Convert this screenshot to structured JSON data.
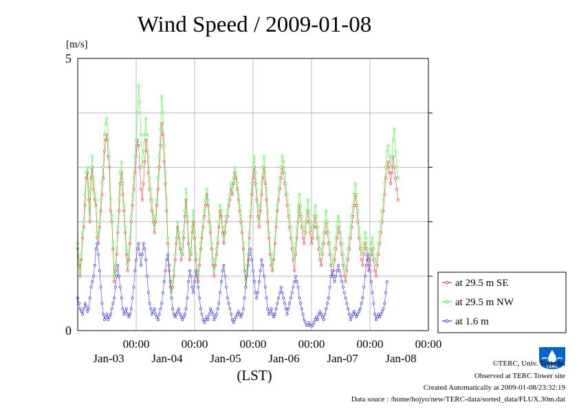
{
  "chart_data": {
    "type": "line",
    "title": "Wind Speed / 2009-01-08",
    "ylabel": "[m/s]",
    "xlabel": "(LST)",
    "ylim": [
      0,
      5
    ],
    "y_tick_labels": [
      "0",
      "5"
    ],
    "x_day_range": [
      2.0,
      8.0
    ],
    "x_ticks": [
      {
        "day": 3,
        "time_label": "00:00",
        "date_label": "Jan-03"
      },
      {
        "day": 4,
        "time_label": "00:00",
        "date_label": "Jan-04"
      },
      {
        "day": 5,
        "time_label": "00:00",
        "date_label": "Jan-05"
      },
      {
        "day": 6,
        "time_label": "00:00",
        "date_label": "Jan-06"
      },
      {
        "day": 7,
        "time_label": "00:00",
        "date_label": "Jan-07"
      },
      {
        "day": 8,
        "time_label": "00:00",
        "date_label": "Jan-08"
      }
    ],
    "x_points_per_day": 48,
    "grid": true,
    "legend_position": "right-bottom",
    "series": [
      {
        "name": "at 29.5 m SE",
        "color": "#ff0000",
        "values": [
          1.5,
          1.2,
          1.0,
          1.3,
          1.7,
          1.9,
          2.3,
          2.8,
          2.9,
          2.4,
          2.0,
          2.8,
          3.0,
          2.6,
          2.4,
          2.3,
          1.7,
          1.6,
          1.9,
          2.2,
          2.5,
          2.8,
          3.3,
          3.5,
          3.6,
          3.2,
          3.0,
          2.2,
          2.0,
          1.5,
          0.9,
          1.1,
          1.4,
          1.8,
          2.2,
          2.7,
          2.9,
          2.5,
          2.2,
          1.8,
          1.4,
          1.1,
          1.3,
          1.6,
          2.0,
          2.3,
          2.6,
          2.9,
          3.2,
          3.5,
          3.4,
          3.0,
          2.6,
          2.4,
          2.7,
          3.1,
          3.5,
          3.3,
          2.9,
          2.6,
          2.4,
          2.2,
          2.0,
          1.8,
          2.0,
          2.3,
          2.6,
          3.0,
          3.4,
          3.8,
          3.6,
          3.1,
          2.7,
          2.2,
          1.6,
          1.1,
          0.8,
          0.7,
          0.8,
          1.0,
          1.3,
          1.6,
          1.9,
          1.7,
          1.5,
          1.3,
          1.4,
          1.7,
          2.1,
          2.4,
          2.0,
          1.6,
          1.3,
          1.4,
          1.8,
          2.0,
          1.7,
          1.3,
          1.0,
          0.9,
          1.2,
          1.5,
          1.7,
          1.9,
          2.1,
          2.3,
          2.5,
          2.3,
          2.0,
          1.8,
          1.5,
          1.2,
          1.0,
          1.2,
          1.4,
          1.6,
          1.9,
          2.2,
          2.1,
          1.8,
          1.6,
          1.8,
          2.0,
          2.1,
          2.3,
          2.4,
          2.6,
          2.5,
          2.7,
          2.9,
          2.8,
          2.6,
          2.4,
          2.2,
          2.0,
          1.8,
          1.5,
          1.1,
          0.8,
          1.0,
          1.3,
          1.7,
          2.1,
          2.5,
          2.8,
          3.0,
          2.7,
          2.4,
          2.1,
          1.9,
          2.2,
          2.5,
          2.8,
          3.0,
          2.7,
          2.4,
          2.0,
          1.7,
          1.4,
          1.2,
          1.1,
          1.3,
          1.6,
          1.9,
          2.2,
          2.4,
          2.6,
          2.8,
          3.0,
          2.9,
          2.7,
          2.5,
          2.3,
          2.1,
          1.9,
          1.7,
          1.5,
          1.3,
          1.1,
          1.4,
          1.7,
          2.0,
          2.3,
          2.1,
          1.9,
          1.7,
          1.6,
          1.8,
          2.0,
          2.2,
          2.0,
          1.8,
          1.6,
          1.7,
          1.9,
          2.1,
          1.9,
          1.7,
          1.5,
          1.3,
          1.2,
          1.4,
          1.6,
          1.8,
          2.0,
          1.8,
          1.6,
          1.4,
          1.2,
          1.0,
          1.1,
          1.3,
          1.5,
          1.7,
          1.9,
          1.8,
          1.6,
          1.4,
          1.2,
          1.0,
          0.9,
          1.1,
          1.3,
          1.5,
          1.7,
          1.9,
          2.1,
          2.3,
          2.5,
          2.3,
          2.0,
          1.7,
          1.5,
          1.3,
          1.2,
          1.4,
          1.6,
          1.5,
          1.3,
          1.1,
          1.2,
          1.4,
          1.5,
          1.3,
          1.1,
          1.0,
          1.2,
          1.4,
          1.6,
          1.8,
          2.0,
          2.2,
          2.5,
          2.8,
          3.0,
          3.1,
          2.9,
          2.7,
          2.9,
          3.2,
          3.0,
          2.8,
          2.6,
          2.4
        ]
      },
      {
        "name": "at 29.5 m NW",
        "color": "#00ff00",
        "values": [
          1.6,
          1.3,
          1.1,
          1.4,
          1.8,
          2.0,
          2.5,
          2.9,
          3.0,
          2.6,
          2.1,
          3.0,
          3.2,
          2.8,
          2.5,
          2.4,
          1.8,
          1.7,
          2.0,
          2.4,
          2.7,
          3.0,
          3.6,
          3.8,
          3.9,
          3.5,
          3.2,
          2.4,
          2.1,
          1.6,
          1.0,
          1.2,
          1.5,
          1.9,
          2.4,
          2.9,
          3.1,
          2.7,
          2.3,
          1.9,
          1.5,
          1.2,
          1.4,
          1.7,
          2.1,
          2.5,
          2.8,
          3.2,
          3.5,
          4.0,
          4.5,
          4.2,
          3.6,
          3.0,
          3.3,
          3.6,
          3.9,
          3.6,
          3.2,
          2.8,
          2.6,
          2.4,
          2.1,
          1.9,
          2.1,
          2.4,
          2.8,
          3.2,
          3.7,
          4.3,
          4.0,
          3.4,
          2.9,
          2.4,
          1.7,
          1.2,
          0.9,
          0.7,
          0.9,
          1.1,
          1.4,
          1.7,
          2.0,
          1.8,
          1.6,
          1.4,
          1.5,
          1.8,
          2.2,
          2.6,
          2.1,
          1.7,
          1.4,
          1.5,
          1.9,
          2.2,
          1.8,
          1.4,
          1.1,
          1.0,
          1.3,
          1.6,
          1.8,
          2.0,
          2.2,
          2.4,
          2.6,
          2.4,
          2.1,
          1.9,
          1.6,
          1.3,
          1.1,
          1.3,
          1.5,
          1.7,
          2.0,
          2.3,
          2.2,
          1.9,
          1.7,
          1.9,
          2.1,
          2.2,
          2.4,
          2.5,
          2.7,
          2.6,
          2.8,
          3.0,
          2.9,
          2.7,
          2.5,
          2.3,
          2.1,
          1.9,
          1.6,
          1.2,
          0.9,
          1.1,
          1.4,
          1.8,
          2.2,
          2.7,
          3.0,
          3.2,
          2.9,
          2.6,
          2.3,
          2.0,
          2.3,
          2.7,
          3.0,
          3.2,
          2.9,
          2.6,
          2.2,
          1.8,
          1.5,
          1.3,
          1.2,
          1.4,
          1.7,
          2.0,
          2.3,
          2.6,
          2.8,
          3.0,
          3.2,
          3.1,
          2.9,
          2.7,
          2.5,
          2.3,
          2.1,
          1.9,
          1.7,
          1.5,
          1.3,
          1.6,
          1.9,
          2.2,
          2.5,
          2.3,
          2.1,
          1.9,
          1.8,
          2.0,
          2.2,
          2.4,
          2.2,
          2.0,
          1.8,
          1.9,
          2.1,
          2.3,
          2.1,
          1.9,
          1.7,
          1.5,
          1.4,
          1.6,
          1.8,
          2.0,
          2.2,
          2.0,
          1.8,
          1.6,
          1.4,
          1.2,
          1.3,
          1.5,
          1.7,
          1.9,
          2.1,
          2.0,
          1.8,
          1.6,
          1.4,
          1.2,
          1.1,
          1.3,
          1.5,
          1.7,
          1.9,
          2.1,
          2.3,
          2.5,
          2.7,
          2.5,
          2.2,
          1.9,
          1.7,
          1.5,
          1.4,
          1.6,
          1.8,
          1.7,
          1.5,
          1.3,
          1.4,
          1.6,
          1.7,
          1.5,
          1.3,
          1.2,
          1.4,
          1.6,
          1.8,
          2.0,
          2.2,
          2.4,
          2.7,
          3.0,
          3.3,
          3.4,
          3.2,
          3.0,
          3.2,
          3.5,
          3.7,
          3.3,
          3.0,
          2.8
        ]
      },
      {
        "name": "at 1.6 m",
        "color": "#0000ff",
        "values": [
          0.6,
          0.5,
          0.4,
          0.35,
          0.3,
          0.4,
          0.5,
          0.45,
          0.35,
          0.4,
          0.6,
          0.8,
          0.9,
          1.0,
          1.2,
          1.5,
          1.6,
          1.4,
          1.1,
          0.8,
          0.5,
          0.3,
          0.2,
          0.25,
          0.3,
          0.2,
          0.25,
          0.3,
          0.4,
          0.5,
          0.6,
          0.8,
          1.0,
          1.2,
          1.0,
          0.8,
          0.6,
          0.4,
          0.3,
          0.35,
          0.4,
          0.3,
          0.25,
          0.3,
          0.4,
          0.6,
          0.8,
          1.1,
          1.3,
          1.5,
          1.6,
          1.4,
          1.2,
          1.4,
          1.6,
          1.5,
          1.3,
          1.0,
          0.7,
          0.5,
          0.4,
          0.3,
          0.35,
          0.4,
          0.3,
          0.25,
          0.2,
          0.3,
          0.4,
          0.5,
          0.7,
          0.9,
          1.1,
          1.3,
          1.4,
          1.2,
          0.9,
          0.6,
          0.4,
          0.3,
          0.25,
          0.3,
          0.35,
          0.4,
          0.3,
          0.25,
          0.2,
          0.25,
          0.3,
          0.4,
          0.6,
          0.9,
          1.1,
          1.0,
          0.8,
          0.7,
          0.9,
          1.1,
          1.0,
          0.8,
          0.6,
          0.4,
          0.3,
          0.2,
          0.15,
          0.2,
          0.25,
          0.2,
          0.3,
          0.4,
          0.35,
          0.3,
          0.2,
          0.25,
          0.3,
          0.4,
          0.5,
          0.7,
          0.9,
          1.1,
          1.2,
          1.0,
          0.8,
          0.6,
          0.5,
          0.4,
          0.3,
          0.2,
          0.15,
          0.2,
          0.25,
          0.3,
          0.35,
          0.3,
          0.25,
          0.3,
          0.4,
          0.6,
          0.8,
          1.0,
          1.2,
          1.4,
          1.5,
          1.3,
          1.1,
          0.9,
          0.7,
          0.6,
          0.7,
          0.9,
          1.1,
          1.3,
          1.2,
          1.0,
          0.8,
          0.6,
          0.4,
          0.3,
          0.35,
          0.4,
          0.3,
          0.25,
          0.3,
          0.4,
          0.5,
          0.6,
          0.7,
          0.8,
          0.7,
          0.6,
          0.5,
          0.4,
          0.3,
          0.4,
          0.5,
          0.6,
          0.7,
          0.8,
          0.9,
          1.0,
          0.9,
          0.8,
          0.6,
          0.5,
          0.4,
          0.3,
          0.2,
          0.15,
          0.1,
          0.1,
          0.15,
          0.1,
          0.08,
          0.1,
          0.15,
          0.2,
          0.25,
          0.2,
          0.3,
          0.35,
          0.3,
          0.25,
          0.2,
          0.3,
          0.4,
          0.5,
          0.6,
          0.8,
          1.0,
          1.1,
          1.0,
          0.9,
          1.0,
          1.1,
          1.2,
          1.1,
          1.0,
          0.9,
          0.8,
          0.7,
          0.6,
          0.5,
          0.4,
          0.3,
          0.2,
          0.25,
          0.3,
          0.35,
          0.3,
          0.25,
          0.3,
          0.35,
          0.4,
          0.5,
          0.6,
          0.8,
          1.0,
          1.2,
          1.4,
          1.3,
          1.1,
          0.9,
          0.7,
          0.5,
          0.3,
          0.2,
          0.25,
          0.3,
          0.25,
          0.3,
          0.35,
          0.4,
          0.5,
          0.7,
          0.9
        ]
      }
    ]
  },
  "footer": {
    "copyright": "©TERC, Univ. Tsukuba",
    "observed": "Observed at TERC Tower site",
    "created": "Created Automatically at 2009-01-08/23:32:19",
    "source": "Data souce : /home/hojyo/new/TERC-data/sorted_data/FLUX.30m.dat"
  },
  "logo": {
    "text": "TERC",
    "color": "#0066cc"
  }
}
